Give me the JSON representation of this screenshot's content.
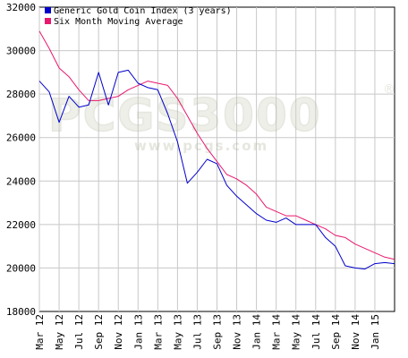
{
  "watermark": {
    "logo_text": "PCGS3000",
    "registered_mark": "®",
    "url": "www.pcgs.com"
  },
  "chart_data": {
    "type": "line",
    "ylim": [
      18000,
      32000
    ],
    "y_ticks": [
      18000,
      20000,
      22000,
      24000,
      26000,
      28000,
      30000,
      32000
    ],
    "y_tick_labels": [
      "18000",
      "20000",
      "22000",
      "24000",
      "26000",
      "28000",
      "30000",
      "32000"
    ],
    "x_range": [
      0,
      36
    ],
    "x_tick_positions": [
      0,
      2,
      4,
      6,
      8,
      10,
      12,
      14,
      16,
      18,
      20,
      22,
      24,
      26,
      28,
      30,
      32,
      34
    ],
    "x_tick_labels": [
      "Mar 12",
      "May 12",
      "Jul 12",
      "Sep 12",
      "Nov 12",
      "Jan 13",
      "Mar 13",
      "May 13",
      "Jul 13",
      "Sep 13",
      "Nov 13",
      "Jan 14",
      "Mar 14",
      "May 14",
      "Jul 14",
      "Sep 14",
      "Nov 14",
      "Jan 15"
    ],
    "grid": true,
    "legend_position": "top-left",
    "series": [
      {
        "name": "Generic Gold Coin Index (3 years)",
        "color": "#0000cc",
        "x": [
          0,
          1,
          2,
          3,
          4,
          5,
          6,
          7,
          8,
          9,
          10,
          11,
          12,
          13,
          14,
          15,
          16,
          17,
          18,
          19,
          20,
          21,
          22,
          23,
          24,
          25,
          26,
          27,
          28,
          29,
          30,
          31,
          32,
          33,
          34,
          35,
          36
        ],
        "values": [
          28600,
          28100,
          26700,
          27900,
          27400,
          27500,
          29000,
          27500,
          29000,
          29100,
          28500,
          28300,
          28200,
          27100,
          25800,
          23900,
          24400,
          25000,
          24800,
          23800,
          23300,
          22900,
          22500,
          22200,
          22100,
          22300,
          22000,
          22000,
          22000,
          21400,
          21000,
          20100,
          20000,
          19950,
          20200,
          20250,
          20200
        ]
      },
      {
        "name": "Six Month Moving Average",
        "color": "#e8186e",
        "x": [
          0,
          1,
          2,
          3,
          4,
          5,
          6,
          7,
          8,
          9,
          10,
          11,
          12,
          13,
          14,
          15,
          16,
          17,
          18,
          19,
          20,
          21,
          22,
          23,
          24,
          25,
          26,
          27,
          28,
          29,
          30,
          31,
          32,
          33,
          34,
          35,
          36
        ],
        "values": [
          30900,
          30100,
          29200,
          28800,
          28200,
          27700,
          27700,
          27800,
          27900,
          28200,
          28400,
          28600,
          28500,
          28400,
          27800,
          27000,
          26200,
          25500,
          24900,
          24300,
          24100,
          23800,
          23400,
          22800,
          22600,
          22400,
          22400,
          22200,
          22000,
          21800,
          21500,
          21400,
          21100,
          20900,
          20700,
          20500,
          20400
        ]
      }
    ]
  }
}
